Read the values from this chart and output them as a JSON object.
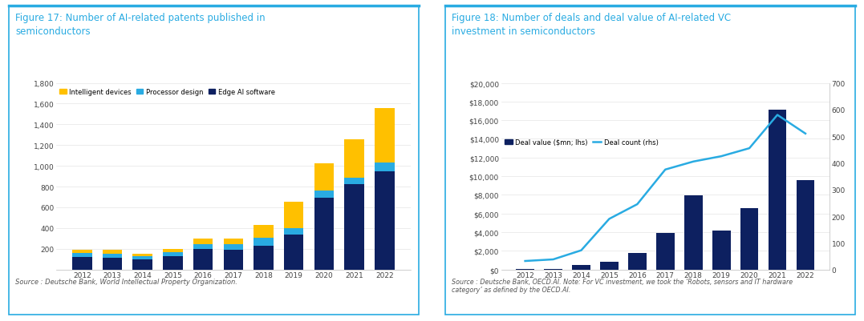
{
  "fig1": {
    "title": "Figure 17: Number of AI-related patents published in\nsemiconductors",
    "title_color": "#29ABE2",
    "years": [
      2012,
      2013,
      2014,
      2015,
      2016,
      2017,
      2018,
      2019,
      2020,
      2021,
      2022
    ],
    "edge_ai": [
      120,
      110,
      100,
      130,
      200,
      190,
      228,
      335,
      690,
      820,
      945
    ],
    "processor": [
      38,
      45,
      28,
      38,
      48,
      52,
      75,
      62,
      68,
      68,
      88
    ],
    "intelligent": [
      32,
      38,
      25,
      32,
      52,
      58,
      125,
      255,
      265,
      370,
      525
    ],
    "colors": {
      "edge_ai": "#0D2060",
      "processor": "#29ABE2",
      "intelligent": "#FFC000"
    },
    "ylim": [
      0,
      1800
    ],
    "yticks": [
      0,
      200,
      400,
      600,
      800,
      1000,
      1200,
      1400,
      1600,
      1800
    ],
    "legend_labels": [
      "Intelligent devices",
      "Processor design",
      "Edge AI software"
    ],
    "source": "Source : Deutsche Bank, World Intellectual Property Organization.",
    "bg_color": "#FFFFFF",
    "border_color": "#29ABE2"
  },
  "fig2": {
    "title": "Figure 18: Number of deals and deal value of AI-related VC\ninvestment in semiconductors",
    "title_color": "#29ABE2",
    "years": [
      2012,
      2013,
      2014,
      2015,
      2016,
      2017,
      2018,
      2019,
      2020,
      2021,
      2022
    ],
    "deal_value": [
      100,
      80,
      480,
      820,
      1750,
      3950,
      7950,
      4150,
      6550,
      17100,
      9550
    ],
    "deal_count": [
      32,
      38,
      72,
      190,
      245,
      375,
      405,
      425,
      455,
      580,
      510
    ],
    "bar_color": "#0D2060",
    "line_color": "#29ABE2",
    "ylim_left": [
      0,
      20000
    ],
    "ylim_right": [
      0,
      700
    ],
    "yticks_left": [
      0,
      2000,
      4000,
      6000,
      8000,
      10000,
      12000,
      14000,
      16000,
      18000,
      20000
    ],
    "yticks_right": [
      0,
      100,
      200,
      300,
      400,
      500,
      600,
      700
    ],
    "ytick_labels_left": [
      "$0",
      "$2,000",
      "$4,000",
      "$6,000",
      "$8,000",
      "$10,000",
      "$12,000",
      "$14,000",
      "$16,000",
      "$18,000",
      "$20,000"
    ],
    "legend_labels": [
      "Deal value ($mn; lhs)",
      "Deal count (rhs)"
    ],
    "source": "Source : Deutsche Bank, OECD.AI. Note: For VC investment, we took the ‘Robots, sensors and IT hardware\ncategory’ as defined by the OECD.AI.",
    "bg_color": "#FFFFFF",
    "border_color": "#29ABE2"
  }
}
